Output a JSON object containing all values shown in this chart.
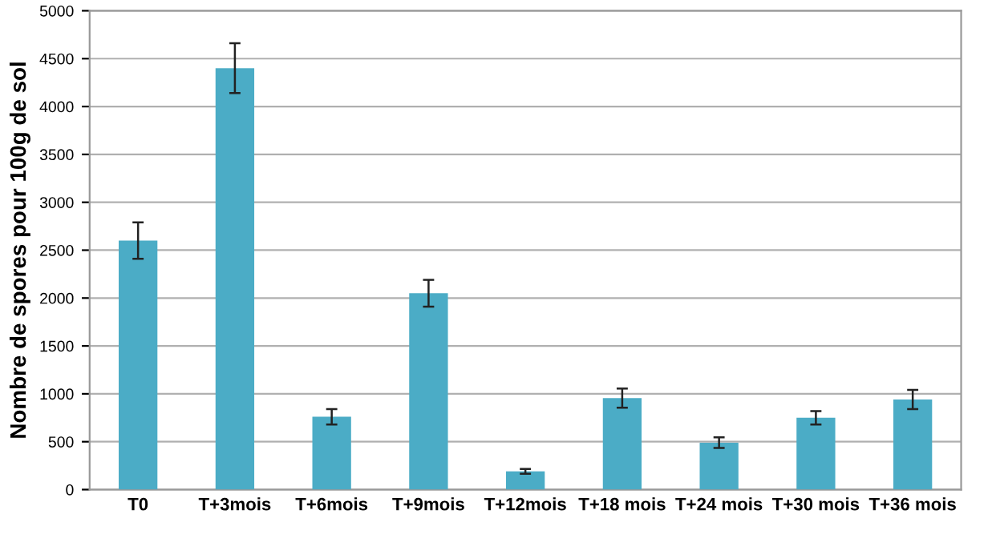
{
  "chart_data": {
    "type": "bar",
    "ylabel": "Nombre de spores pour 100g de sol",
    "categories": [
      "T0",
      "T+3mois",
      "T+6mois",
      "T+9mois",
      "T+12mois",
      "T+18 mois",
      "T+24 mois",
      "T+30 mois",
      "T+36 mois"
    ],
    "values": [
      2600,
      4400,
      760,
      2050,
      190,
      955,
      490,
      750,
      940
    ],
    "errors": [
      190,
      260,
      80,
      140,
      25,
      100,
      55,
      70,
      100
    ],
    "color": "#4bacc6",
    "ylim": [
      0,
      5000
    ],
    "yticks": [
      0,
      500,
      1000,
      1500,
      2000,
      2500,
      3000,
      3500,
      4000,
      4500,
      5000
    ],
    "grid": "y",
    "legend": false
  }
}
